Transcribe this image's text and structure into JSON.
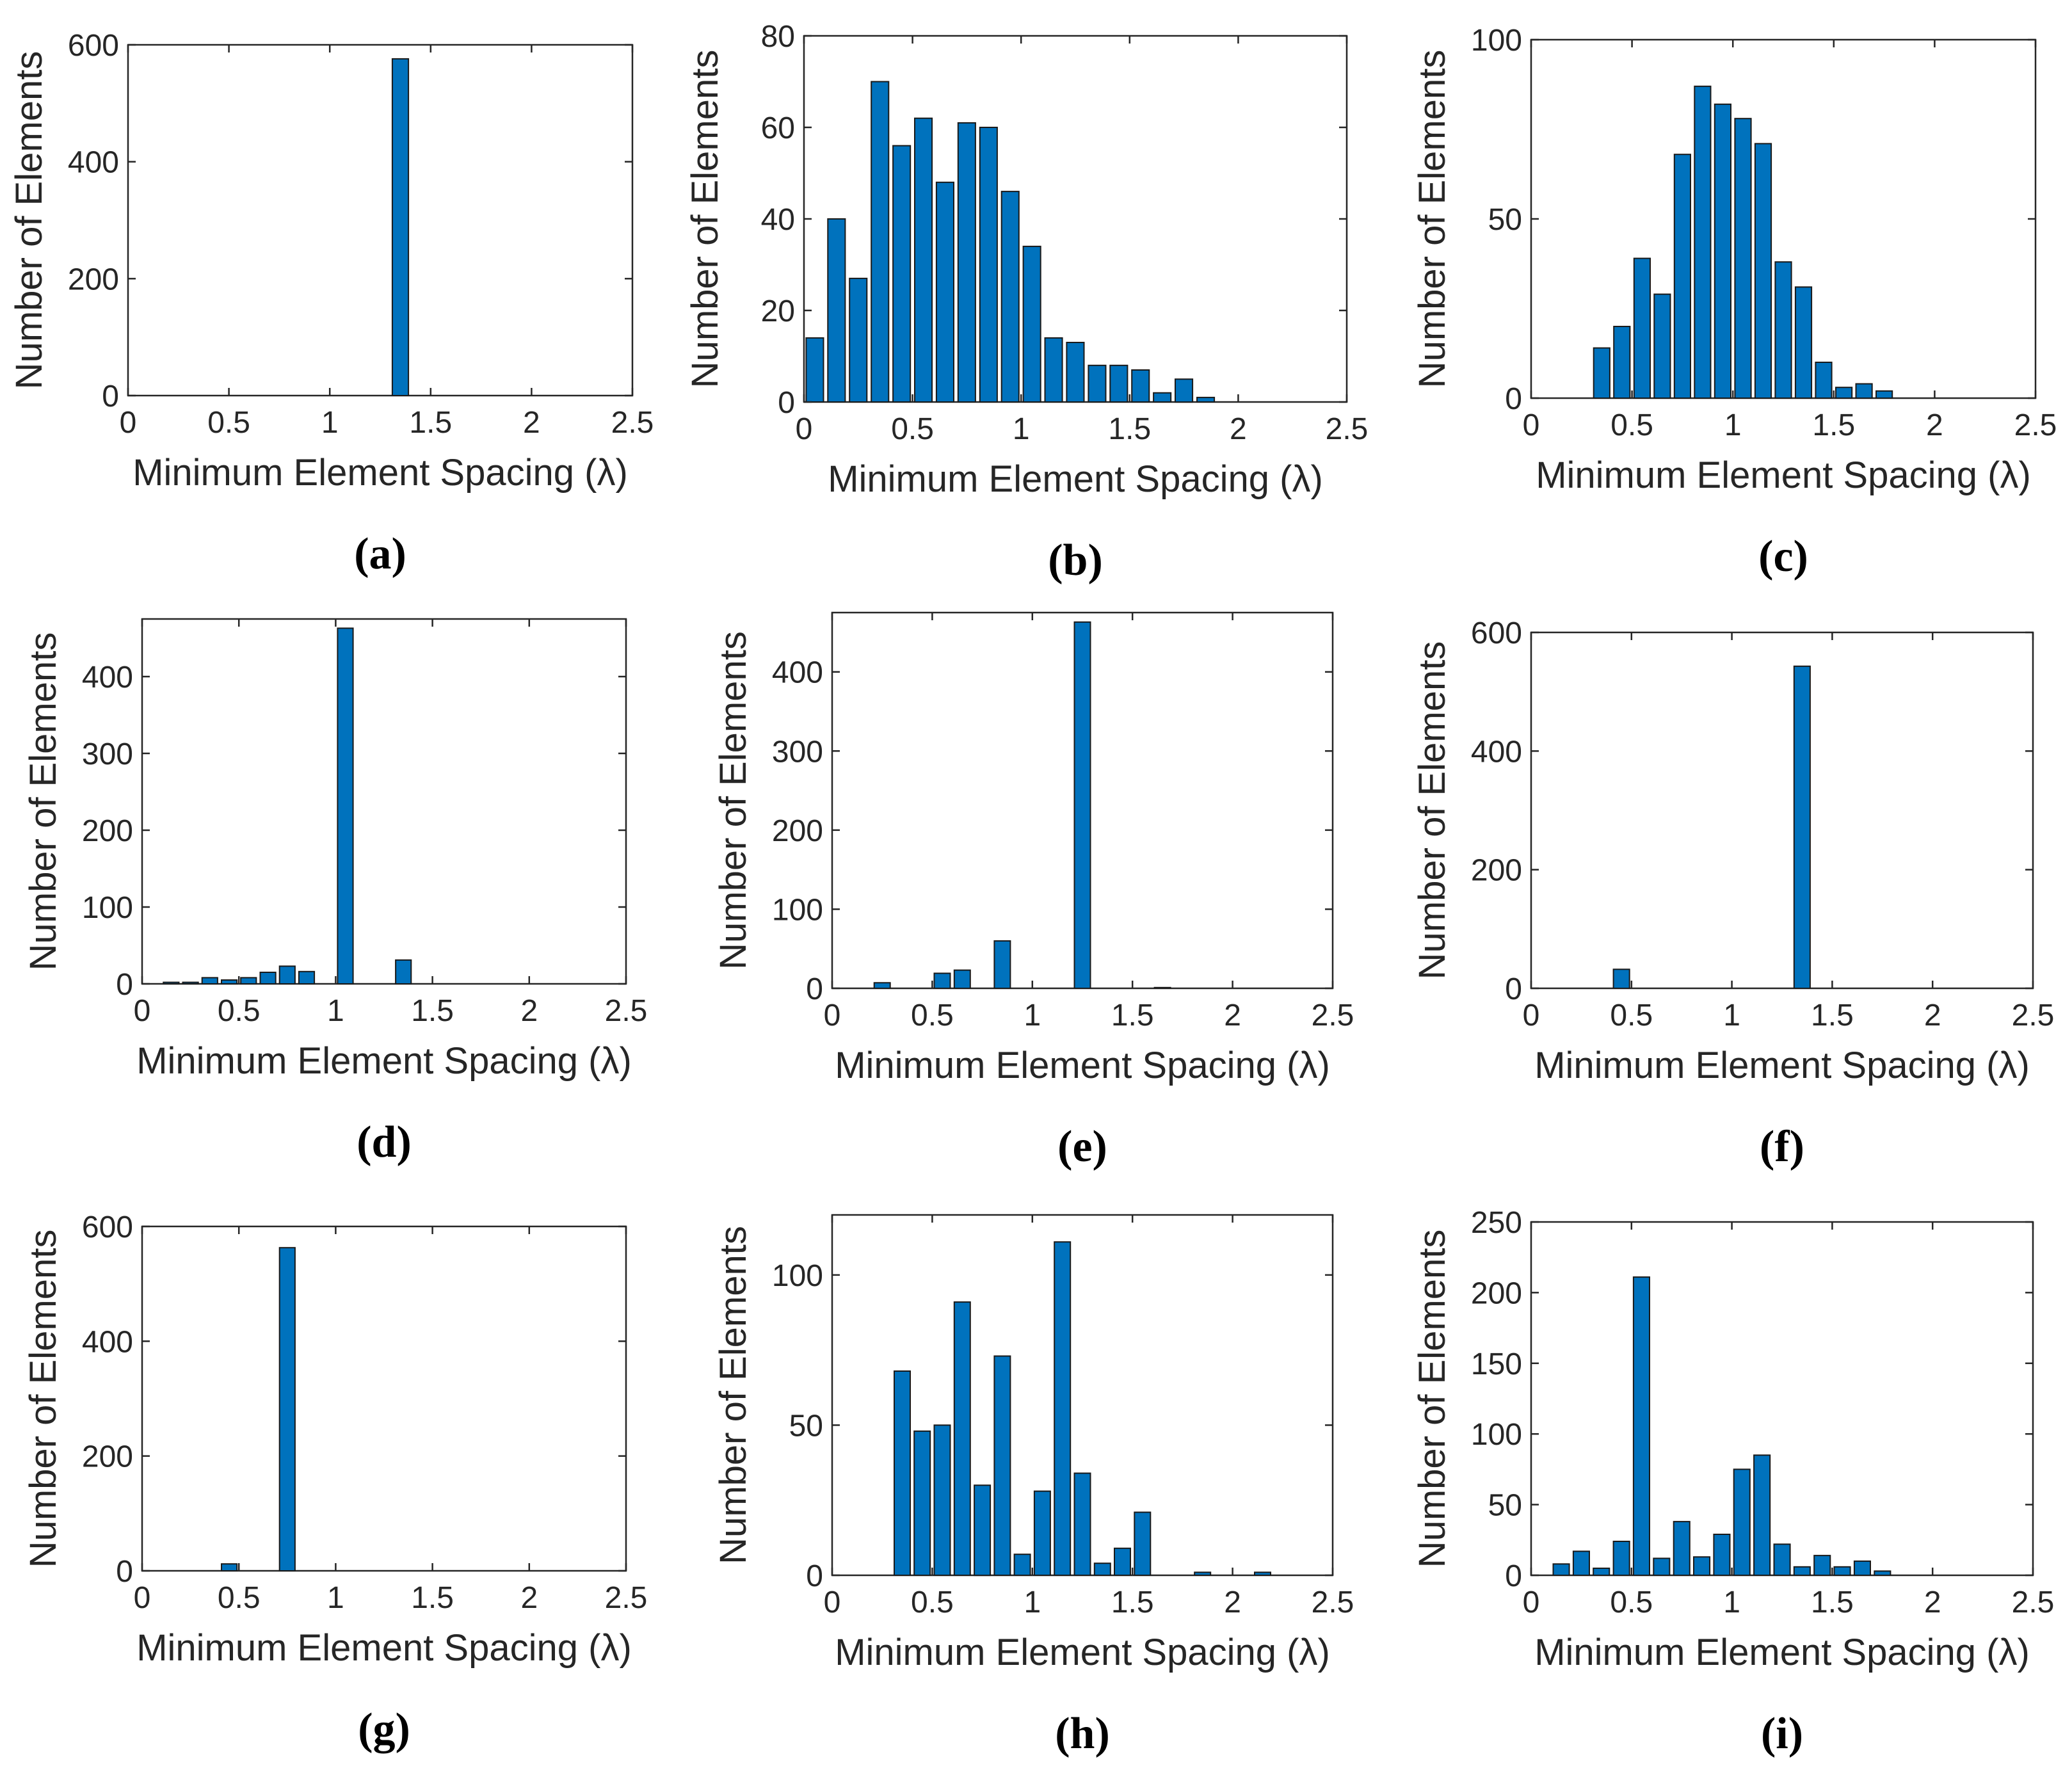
{
  "figure": {
    "colors": {
      "bar": "#0072BD",
      "axis": "#262626"
    }
  },
  "chart_data": [
    {
      "id": "a",
      "panel_label": "(a)",
      "type": "bar",
      "xlabel": "Minimum Element Spacing (λ)",
      "ylabel": "Number of Elements",
      "xlim": [
        0,
        2.5
      ],
      "ylim": [
        0,
        600
      ],
      "xticks": [
        0,
        0.5,
        1,
        1.5,
        2,
        2.5
      ],
      "xtick_labels": [
        "0",
        "0.5",
        "1",
        "1.5",
        "2",
        "2.5"
      ],
      "yticks": [
        0,
        200,
        400,
        600
      ],
      "ytick_labels": [
        "0",
        "200",
        "400",
        "600"
      ],
      "bar_width": 0.08,
      "x": [
        1.35
      ],
      "values": [
        576
      ]
    },
    {
      "id": "b",
      "panel_label": "(b)",
      "type": "bar",
      "xlabel": "Minimum Element Spacing (λ)",
      "ylabel": "Number of Elements",
      "xlim": [
        0,
        2.5
      ],
      "ylim": [
        0,
        80
      ],
      "xticks": [
        0,
        0.5,
        1,
        1.5,
        2,
        2.5
      ],
      "xtick_labels": [
        "0",
        "0.5",
        "1",
        "1.5",
        "2",
        "2.5"
      ],
      "yticks": [
        0,
        20,
        40,
        60,
        80
      ],
      "ytick_labels": [
        "0",
        "20",
        "40",
        "60",
        "80"
      ],
      "bar_width": 0.08,
      "x": [
        0.05,
        0.15,
        0.25,
        0.35,
        0.45,
        0.55,
        0.65,
        0.75,
        0.85,
        0.95,
        1.05,
        1.15,
        1.25,
        1.35,
        1.45,
        1.55,
        1.65,
        1.75,
        1.85
      ],
      "values": [
        14,
        40,
        27,
        70,
        56,
        62,
        48,
        61,
        60,
        46,
        34,
        14,
        13,
        8,
        8,
        7,
        2,
        5,
        1
      ]
    },
    {
      "id": "c",
      "panel_label": "(c)",
      "type": "bar",
      "xlabel": "Minimum Element Spacing (λ)",
      "ylabel": "Number of Elements",
      "xlim": [
        0,
        2.5
      ],
      "ylim": [
        0,
        100
      ],
      "xticks": [
        0,
        0.5,
        1,
        1.5,
        2,
        2.5
      ],
      "xtick_labels": [
        "0",
        "0.5",
        "1",
        "1.5",
        "2",
        "2.5"
      ],
      "yticks": [
        0,
        50,
        100
      ],
      "ytick_labels": [
        "0",
        "50",
        "100"
      ],
      "bar_width": 0.08,
      "x": [
        0.35,
        0.45,
        0.55,
        0.65,
        0.75,
        0.85,
        0.95,
        1.05,
        1.15,
        1.25,
        1.35,
        1.45,
        1.55,
        1.65,
        1.75
      ],
      "values": [
        14,
        20,
        39,
        29,
        68,
        87,
        82,
        78,
        71,
        38,
        31,
        10,
        3,
        4,
        2
      ]
    },
    {
      "id": "d",
      "panel_label": "(d)",
      "type": "bar",
      "xlabel": "Minimum Element Spacing (λ)",
      "ylabel": "Number of Elements",
      "xlim": [
        0,
        2.5
      ],
      "ylim": [
        0,
        475
      ],
      "xticks": [
        0,
        0.5,
        1,
        1.5,
        2,
        2.5
      ],
      "xtick_labels": [
        "0",
        "0.5",
        "1",
        "1.5",
        "2",
        "2.5"
      ],
      "yticks": [
        0,
        100,
        200,
        300,
        400
      ],
      "ytick_labels": [
        "0",
        "100",
        "200",
        "300",
        "400"
      ],
      "bar_width": 0.08,
      "x": [
        0.15,
        0.25,
        0.35,
        0.45,
        0.55,
        0.65,
        0.75,
        0.85,
        1.05,
        1.35
      ],
      "values": [
        2,
        2,
        8,
        5,
        8,
        15,
        23,
        16,
        463,
        31
      ]
    },
    {
      "id": "e",
      "panel_label": "(e)",
      "type": "bar",
      "xlabel": "Minimum Element Spacing (λ)",
      "ylabel": "Number of Elements",
      "xlim": [
        0,
        2.5
      ],
      "ylim": [
        0,
        475
      ],
      "xticks": [
        0,
        0.5,
        1,
        1.5,
        2,
        2.5
      ],
      "xtick_labels": [
        "0",
        "0.5",
        "1",
        "1.5",
        "2",
        "2.5"
      ],
      "yticks": [
        0,
        100,
        200,
        300,
        400
      ],
      "ytick_labels": [
        "0",
        "100",
        "200",
        "300",
        "400"
      ],
      "bar_width": 0.08,
      "x": [
        0.25,
        0.55,
        0.65,
        0.85,
        1.25,
        1.65
      ],
      "values": [
        7,
        19,
        23,
        60,
        463,
        1
      ]
    },
    {
      "id": "f",
      "panel_label": "(f)",
      "type": "bar",
      "xlabel": "Minimum Element Spacing (λ)",
      "ylabel": "Number of Elements",
      "xlim": [
        0,
        2.5
      ],
      "ylim": [
        0,
        600
      ],
      "xticks": [
        0,
        0.5,
        1,
        1.5,
        2,
        2.5
      ],
      "xtick_labels": [
        "0",
        "0.5",
        "1",
        "1.5",
        "2",
        "2.5"
      ],
      "yticks": [
        0,
        200,
        400,
        600
      ],
      "ytick_labels": [
        "0",
        "200",
        "400",
        "600"
      ],
      "bar_width": 0.08,
      "x": [
        0.45,
        1.35
      ],
      "values": [
        32,
        543
      ]
    },
    {
      "id": "g",
      "panel_label": "(g)",
      "type": "bar",
      "xlabel": "Minimum Element Spacing (λ)",
      "ylabel": "Number of Elements",
      "xlim": [
        0,
        2.5
      ],
      "ylim": [
        0,
        600
      ],
      "xticks": [
        0,
        0.5,
        1,
        1.5,
        2,
        2.5
      ],
      "xtick_labels": [
        "0",
        "0.5",
        "1",
        "1.5",
        "2",
        "2.5"
      ],
      "yticks": [
        0,
        200,
        400,
        600
      ],
      "ytick_labels": [
        "0",
        "200",
        "400",
        "600"
      ],
      "bar_width": 0.08,
      "x": [
        0.45,
        0.75
      ],
      "values": [
        12,
        563
      ]
    },
    {
      "id": "h",
      "panel_label": "(h)",
      "type": "bar",
      "xlabel": "Minimum Element Spacing (λ)",
      "ylabel": "Number of Elements",
      "xlim": [
        0,
        2.5
      ],
      "ylim": [
        0,
        120
      ],
      "xticks": [
        0,
        0.5,
        1,
        1.5,
        2,
        2.5
      ],
      "xtick_labels": [
        "0",
        "0.5",
        "1",
        "1.5",
        "2",
        "2.5"
      ],
      "yticks": [
        0,
        50,
        100
      ],
      "ytick_labels": [
        "0",
        "50",
        "100"
      ],
      "bar_width": 0.08,
      "x": [
        0.35,
        0.45,
        0.55,
        0.65,
        0.75,
        0.85,
        0.95,
        1.05,
        1.15,
        1.25,
        1.35,
        1.45,
        1.55,
        1.85,
        2.15
      ],
      "values": [
        68,
        48,
        50,
        91,
        30,
        73,
        7,
        28,
        111,
        34,
        4,
        9,
        21,
        1,
        1
      ]
    },
    {
      "id": "i",
      "panel_label": "(i)",
      "type": "bar",
      "xlabel": "Minimum Element Spacing (λ)",
      "ylabel": "Number of Elements",
      "xlim": [
        0,
        2.5
      ],
      "ylim": [
        0,
        250
      ],
      "xticks": [
        0,
        0.5,
        1,
        1.5,
        2,
        2.5
      ],
      "xtick_labels": [
        "0",
        "0.5",
        "1",
        "1.5",
        "2",
        "2.5"
      ],
      "yticks": [
        0,
        50,
        100,
        150,
        200,
        250
      ],
      "ytick_labels": [
        "0",
        "50",
        "100",
        "150",
        "200",
        "250"
      ],
      "bar_width": 0.08,
      "x": [
        0.15,
        0.25,
        0.35,
        0.45,
        0.55,
        0.65,
        0.75,
        0.85,
        0.95,
        1.05,
        1.15,
        1.25,
        1.35,
        1.45,
        1.55,
        1.65,
        1.75
      ],
      "values": [
        8,
        17,
        5,
        24,
        211,
        12,
        38,
        13,
        29,
        75,
        85,
        22,
        6,
        14,
        6,
        10,
        3
      ]
    }
  ]
}
